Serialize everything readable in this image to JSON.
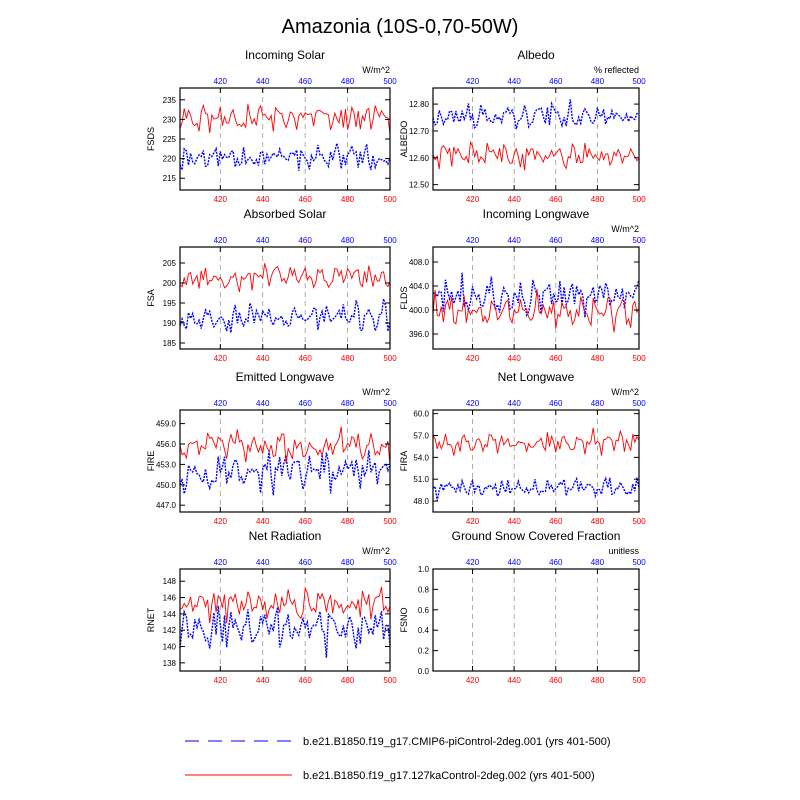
{
  "figure_title": "Amazonia (10S-0,70-50W)",
  "colors": {
    "series_a": "#0000ff",
    "series_b": "#ff0000",
    "axes": "#000000",
    "grid": "#999999"
  },
  "legend": [
    {
      "label": "b.e21.B1850.f19_g17.CMIP6-piControl-2deg.001 (yrs 401-500)",
      "style": "dashed",
      "color": "#0000ff"
    },
    {
      "label": "b.e21.B1850.f19_g17.127kaControl-2deg.002 (yrs 401-500)",
      "style": "solid",
      "color": "#ff0000"
    }
  ],
  "chart_data": [
    {
      "type": "line",
      "id": "fsds",
      "title": "Incoming Solar",
      "ylabel": "FSDS",
      "units": "W/m^2",
      "xlim": [
        401,
        500
      ],
      "ylim": [
        212,
        238
      ],
      "yticks": [
        215,
        220,
        225,
        230,
        235
      ],
      "ytick_labels": [
        "215",
        "220",
        "225",
        "230",
        "235"
      ],
      "xticks": [
        420,
        440,
        460,
        480,
        500
      ],
      "xtick_labels": [
        "420",
        "440",
        "460",
        "480",
        "500"
      ],
      "series": [
        {
          "name": "CMIP6-piControl",
          "color": "#0000ff",
          "dash": true,
          "mean": 220.5,
          "amp": 3.5,
          "seed": 11
        },
        {
          "name": "127kaControl",
          "color": "#ff0000",
          "dash": false,
          "mean": 230.5,
          "amp": 3.3,
          "seed": 23
        }
      ]
    },
    {
      "type": "line",
      "id": "albedo",
      "title": "Albedo",
      "ylabel": "ALBEDO",
      "units": "% reflected",
      "xlim": [
        401,
        500
      ],
      "ylim": [
        12.48,
        12.86
      ],
      "yticks": [
        12.5,
        12.6,
        12.7,
        12.8
      ],
      "ytick_labels": [
        "12.50",
        "12.60",
        "12.70",
        "12.80"
      ],
      "xticks": [
        420,
        440,
        460,
        480,
        500
      ],
      "xtick_labels": [
        "420",
        "440",
        "460",
        "480",
        "500"
      ],
      "series": [
        {
          "name": "CMIP6-piControl",
          "color": "#0000ff",
          "dash": true,
          "mean": 12.755,
          "amp": 0.045,
          "seed": 37
        },
        {
          "name": "127kaControl",
          "color": "#ff0000",
          "dash": false,
          "mean": 12.61,
          "amp": 0.045,
          "seed": 41
        }
      ]
    },
    {
      "type": "line",
      "id": "fsa",
      "title": "Absorbed Solar",
      "ylabel": "FSA",
      "units": "",
      "xlim": [
        401,
        500
      ],
      "ylim": [
        183.5,
        209
      ],
      "yticks": [
        185,
        190,
        195,
        200,
        205
      ],
      "ytick_labels": [
        "185",
        "190",
        "195",
        "200",
        "205"
      ],
      "xticks": [
        420,
        440,
        460,
        480,
        500
      ],
      "xtick_labels": [
        "420",
        "440",
        "460",
        "480",
        "500"
      ],
      "series": [
        {
          "name": "CMIP6-piControl",
          "color": "#0000ff",
          "dash": true,
          "mean": 191.5,
          "amp": 3.3,
          "seed": 53
        },
        {
          "name": "127kaControl",
          "color": "#ff0000",
          "dash": false,
          "mean": 201.5,
          "amp": 3.0,
          "seed": 67
        }
      ]
    },
    {
      "type": "line",
      "id": "flds",
      "title": "Incoming Longwave",
      "ylabel": "FLDS",
      "units": "W/m^2",
      "xlim": [
        401,
        500
      ],
      "ylim": [
        393.5,
        410.5
      ],
      "yticks": [
        396,
        400,
        404,
        408
      ],
      "ytick_labels": [
        "396.0",
        "400.0",
        "404.0",
        "408.0"
      ],
      "xticks": [
        420,
        440,
        460,
        480,
        500
      ],
      "xtick_labels": [
        "420",
        "440",
        "460",
        "480",
        "500"
      ],
      "series": [
        {
          "name": "CMIP6-piControl",
          "color": "#0000ff",
          "dash": true,
          "mean": 402.3,
          "amp": 2.9,
          "seed": 71
        },
        {
          "name": "127kaControl",
          "color": "#ff0000",
          "dash": false,
          "mean": 399.8,
          "amp": 2.6,
          "seed": 89
        }
      ]
    },
    {
      "type": "line",
      "id": "fire",
      "title": "Emitted Longwave",
      "ylabel": "FIRE",
      "units": "W/m^2",
      "xlim": [
        401,
        500
      ],
      "ylim": [
        446,
        461
      ],
      "yticks": [
        447,
        450,
        453,
        456,
        459
      ],
      "ytick_labels": [
        "447.0",
        "450.0",
        "453.0",
        "456.0",
        "459.0"
      ],
      "xticks": [
        420,
        440,
        460,
        480,
        500
      ],
      "xtick_labels": [
        "420",
        "440",
        "460",
        "480",
        "500"
      ],
      "series": [
        {
          "name": "CMIP6-piControl",
          "color": "#0000ff",
          "dash": true,
          "mean": 452.0,
          "amp": 2.6,
          "seed": 97
        },
        {
          "name": "127kaControl",
          "color": "#ff0000",
          "dash": false,
          "mean": 455.5,
          "amp": 2.1,
          "seed": 103
        }
      ]
    },
    {
      "type": "line",
      "id": "fira",
      "title": "Net Longwave",
      "ylabel": "FIRA",
      "units": "W/m^2",
      "xlim": [
        401,
        500
      ],
      "ylim": [
        46.5,
        60.5
      ],
      "yticks": [
        48,
        51,
        54,
        57,
        60
      ],
      "ytick_labels": [
        "48.0",
        "51.0",
        "54.0",
        "57.0",
        "60.0"
      ],
      "xticks": [
        420,
        440,
        460,
        480,
        500
      ],
      "xtick_labels": [
        "420",
        "440",
        "460",
        "480",
        "500"
      ],
      "series": [
        {
          "name": "CMIP6-piControl",
          "color": "#0000ff",
          "dash": true,
          "mean": 49.8,
          "amp": 1.3,
          "seed": 109
        },
        {
          "name": "127kaControl",
          "color": "#ff0000",
          "dash": false,
          "mean": 56.0,
          "amp": 1.4,
          "seed": 127
        }
      ]
    },
    {
      "type": "line",
      "id": "rnet",
      "title": "Net Radiation",
      "ylabel": "RNET",
      "units": "W/m^2",
      "xlim": [
        401,
        500
      ],
      "ylim": [
        137,
        149.5
      ],
      "yticks": [
        138,
        140,
        142,
        144,
        146,
        148
      ],
      "ytick_labels": [
        "138",
        "140",
        "142",
        "144",
        "146",
        "148"
      ],
      "xticks": [
        420,
        440,
        460,
        480,
        500
      ],
      "xtick_labels": [
        "420",
        "440",
        "460",
        "480",
        "500"
      ],
      "series": [
        {
          "name": "CMIP6-piControl",
          "color": "#0000ff",
          "dash": true,
          "mean": 142.3,
          "amp": 2.4,
          "seed": 131
        },
        {
          "name": "127kaControl",
          "color": "#ff0000",
          "dash": false,
          "mean": 145.3,
          "amp": 1.7,
          "seed": 149
        }
      ]
    },
    {
      "type": "line",
      "id": "fsno",
      "title": "Ground Snow Covered Fraction",
      "ylabel": "FSNO",
      "units": "unitless",
      "xlim": [
        401,
        500
      ],
      "ylim": [
        0,
        1
      ],
      "yticks": [
        0,
        0.2,
        0.4,
        0.6,
        0.8,
        1.0
      ],
      "ytick_labels": [
        "0.0",
        "0.2",
        "0.4",
        "0.6",
        "0.8",
        "1.0"
      ],
      "xticks": [
        420,
        440,
        460,
        480,
        500
      ],
      "xtick_labels": [
        "420",
        "440",
        "460",
        "480",
        "500"
      ],
      "series": []
    }
  ]
}
